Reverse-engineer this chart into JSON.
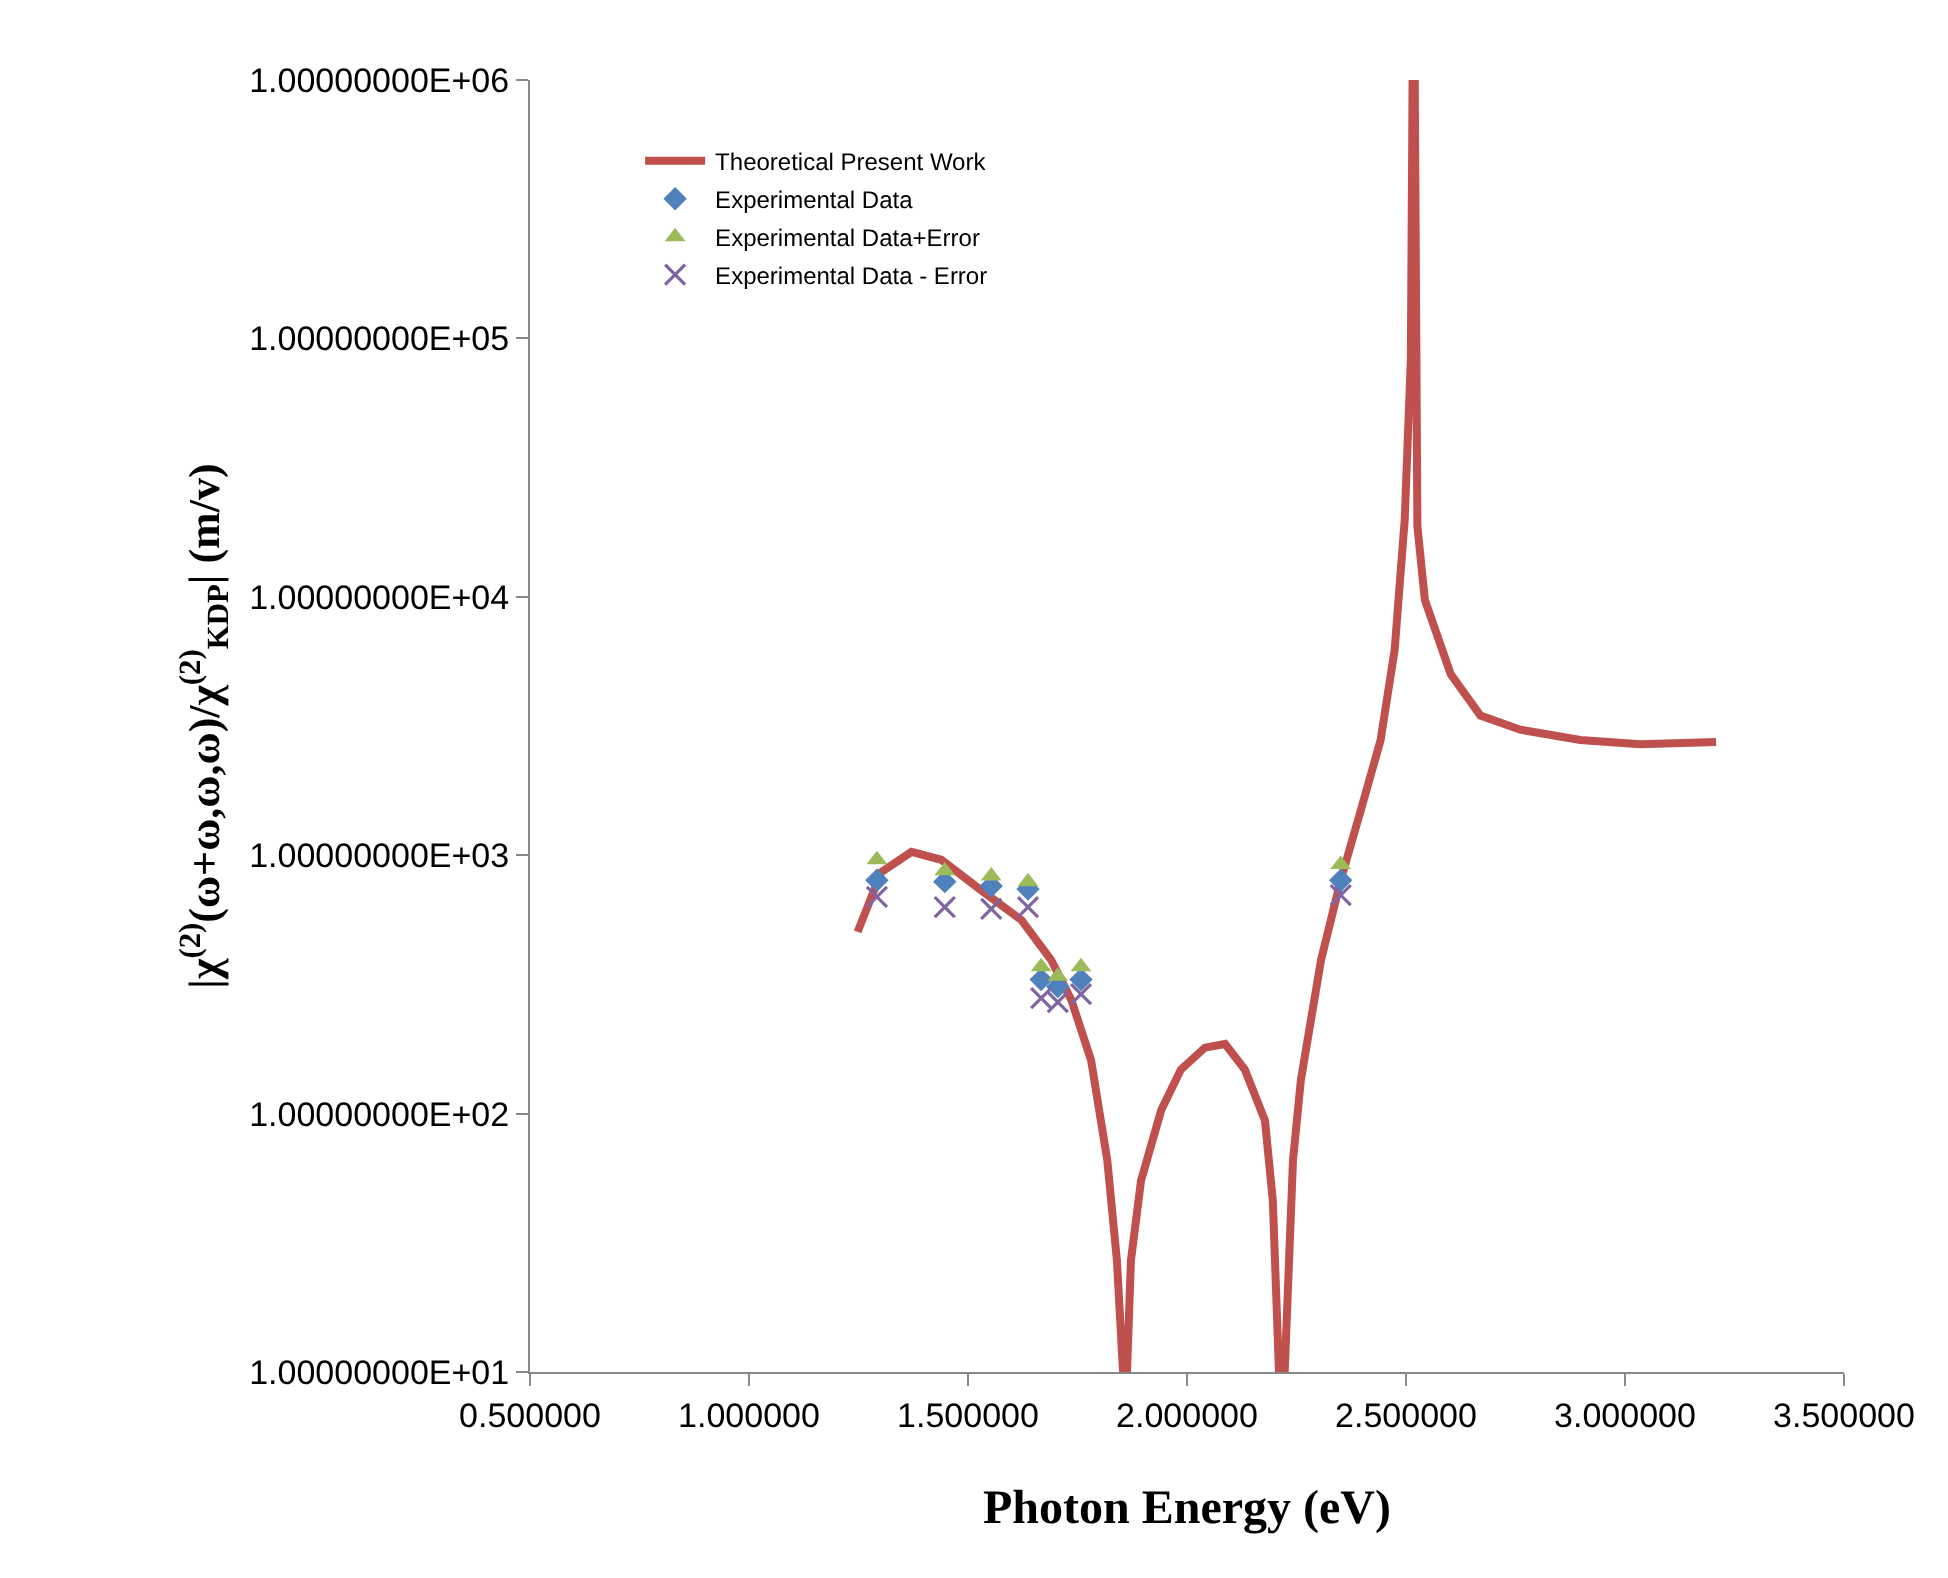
{
  "chart_data": {
    "type": "line",
    "xlabel": "Photon Energy (eV)",
    "ylabel": "|χ$^{(2)}$(ω+ω,ω,ω)/χ$^{(2)}$$_{KDP}$| (m/v)",
    "log": "y",
    "grid": false,
    "legend": "top left",
    "xlim": [
      0.5,
      3.5
    ],
    "xticks": [
      {
        "value": 0.5,
        "label": "0.500000"
      },
      {
        "value": 1,
        "label": "1.000000"
      },
      {
        "value": 1.5,
        "label": "1.500000"
      },
      {
        "value": 2,
        "label": "2.000000"
      },
      {
        "value": 2.5,
        "label": "2.500000"
      },
      {
        "value": 3,
        "label": "3.000000"
      },
      {
        "value": 3.5,
        "label": "3.500000"
      }
    ],
    "ylim": [
      10,
      1000000
    ],
    "yticks": [
      {
        "value": 10,
        "label": "1.00000000E+01"
      },
      {
        "value": 100,
        "label": "1.00000000E+02"
      },
      {
        "value": 1000,
        "label": "1.00000000E+03"
      },
      {
        "value": 10000,
        "label": "1.00000000E+04"
      },
      {
        "value": 100000,
        "label": "1.00000000E+05"
      },
      {
        "value": 1000000,
        "label": "1.00000000E+06"
      }
    ],
    "series": [
      {
        "name": "Theoretical Present Work",
        "color": "#c0504d",
        "marker": "none",
        "line_style": "solid",
        "x": [
          1.248,
          1.302,
          1.371,
          1.439,
          1.53,
          1.622,
          1.69,
          1.736,
          1.781,
          1.818,
          1.84,
          1.854,
          1.863,
          1.872,
          1.895,
          1.941,
          1.986,
          2.041,
          2.087,
          2.132,
          2.178,
          2.196,
          2.21,
          2.223,
          2.242,
          2.26,
          2.306,
          2.351,
          2.397,
          2.442,
          2.474,
          2.497,
          2.511,
          2.515,
          2.52,
          2.526,
          2.543,
          2.602,
          2.67,
          2.761,
          2.898,
          3.035,
          3.208
        ],
        "values": [
          505,
          860,
          1030,
          960,
          732,
          561,
          393,
          275,
          161,
          66,
          27,
          10,
          10,
          27,
          55,
          103,
          148,
          180,
          186,
          148,
          94,
          46,
          10,
          10,
          66,
          135,
          393,
          802,
          1496,
          2790,
          6220,
          19800,
          82400,
          1000000,
          1000000,
          18800,
          9730,
          5020,
          3470,
          3060,
          2790,
          2690,
          2740
        ]
      },
      {
        "name": "Experimental Data",
        "type": "scatter",
        "color": "#4f81bd",
        "marker": "diamond",
        "x": [
          1.292,
          1.447,
          1.553,
          1.637,
          1.667,
          1.705,
          1.758,
          2.351
        ],
        "values": [
          800,
          790,
          760,
          740,
          330,
          310,
          330,
          800
        ]
      },
      {
        "name": "Experimental Data+Error",
        "type": "scatter",
        "color": "#9bbb59",
        "marker": "triangle",
        "x": [
          1.292,
          1.447,
          1.553,
          1.637,
          1.667,
          1.705,
          1.758,
          2.351
        ],
        "values": [
          960,
          870,
          830,
          790,
          370,
          340,
          370,
          920
        ]
      },
      {
        "name": "Experimental Data - Error",
        "type": "scatter",
        "color": "#8064a2",
        "marker": "cross",
        "x": [
          1.292,
          1.447,
          1.553,
          1.637,
          1.667,
          1.705,
          1.758,
          2.351
        ],
        "values": [
          690,
          630,
          620,
          630,
          280,
          270,
          290,
          700
        ]
      }
    ]
  }
}
